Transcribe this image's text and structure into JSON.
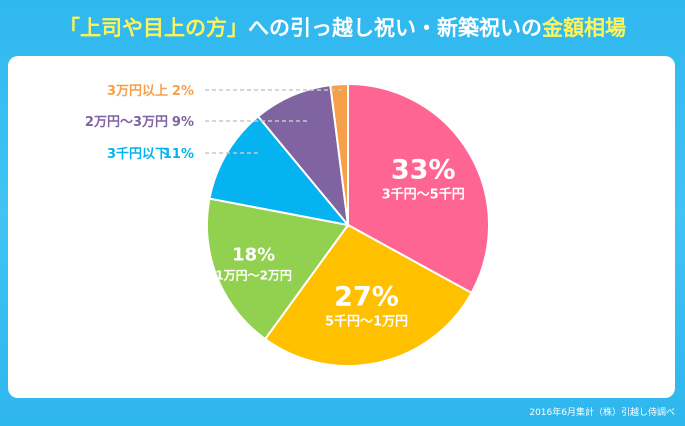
{
  "title": {
    "part1": "「上司や目上の方」",
    "part2": "への引っ越し祝い・新築祝いの",
    "part3": "金額相場"
  },
  "footer": "2016年6月集計（株）引越し侍調べ",
  "colors": {
    "background": "#2fb8ef",
    "title_highlight": "#fff35b",
    "slice_33": "#ff6593",
    "slice_27": "#ffc000",
    "slice_18": "#92d14f",
    "slice_11": "#04b3f0",
    "slice_9": "#8064a2",
    "slice_2": "#f7a04a"
  },
  "chart_data": {
    "type": "pie",
    "title": "",
    "slices": [
      {
        "label": "3千円〜5千円",
        "value": 33,
        "value_label": "33%",
        "color": "#ff6593"
      },
      {
        "label": "5千円〜1万円",
        "value": 27,
        "value_label": "27%",
        "color": "#ffc000"
      },
      {
        "label": "1万円〜2万円",
        "value": 18,
        "value_label": "18%",
        "color": "#92d14f"
      },
      {
        "label": "3千円以下",
        "value": 11,
        "value_label": "11%",
        "color": "#04b3f0"
      },
      {
        "label": "2万円〜3万円",
        "value": 9,
        "value_label": "9%",
        "color": "#8064a2"
      },
      {
        "label": "3万円以上",
        "value": 2,
        "value_label": "2%",
        "color": "#f7a04a"
      }
    ]
  }
}
